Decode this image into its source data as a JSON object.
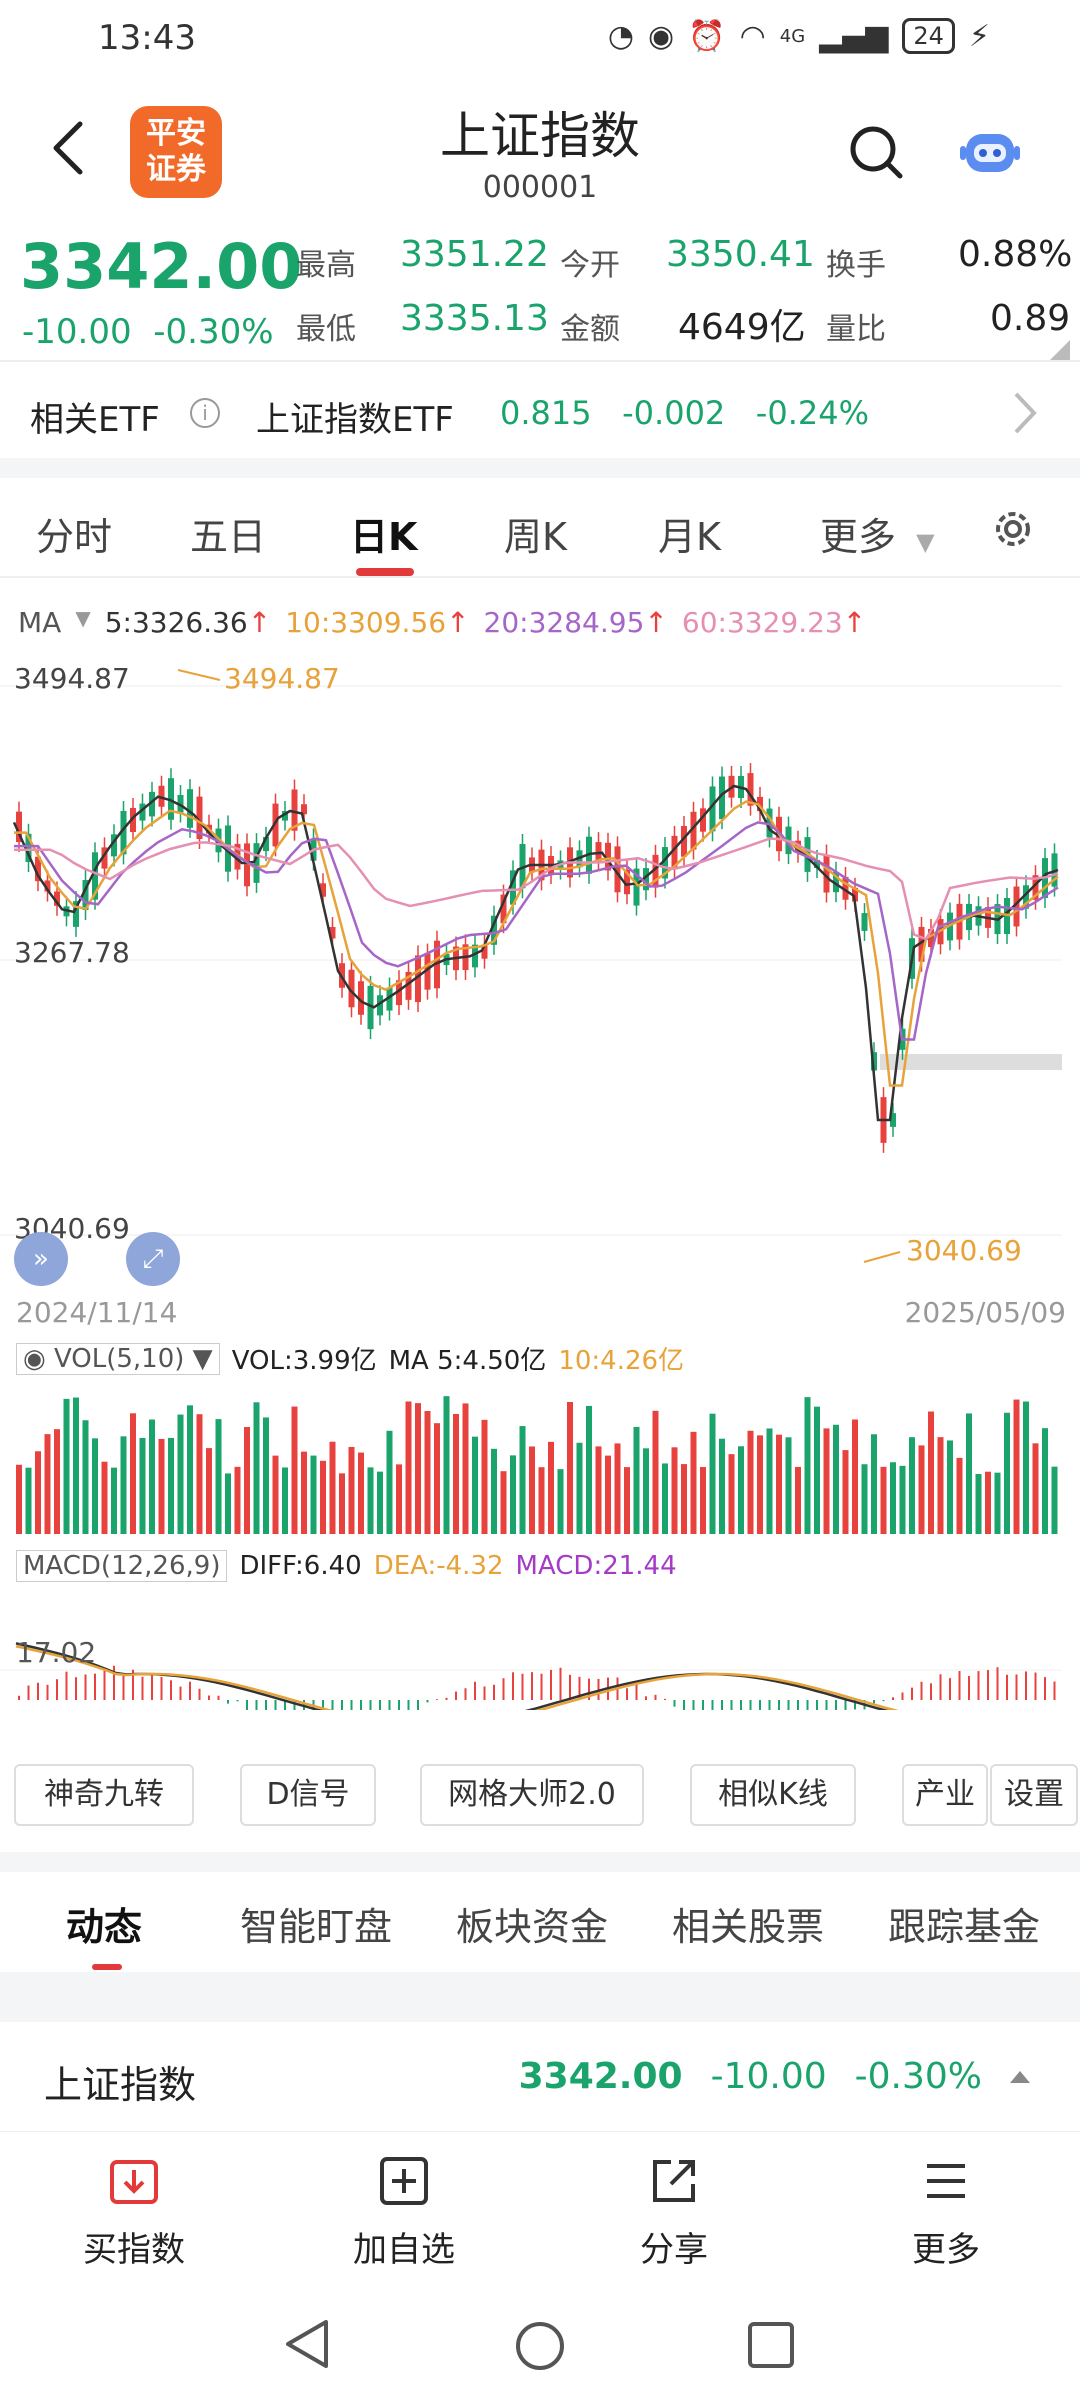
{
  "status": {
    "time": "13:43",
    "network": "4G",
    "battery": "24"
  },
  "header": {
    "title": "上证指数",
    "code": "000001",
    "logo_text_1": "平安",
    "logo_text_2": "证券"
  },
  "quote": {
    "price": "3342.00",
    "change": "-10.00",
    "change_pct": "-0.30%",
    "high_label": "最高",
    "high": "3351.22",
    "open_label": "今开",
    "open": "3350.41",
    "turnover_label": "换手",
    "turnover": "0.88%",
    "low_label": "最低",
    "low": "3335.13",
    "amount_label": "金额",
    "amount": "4649亿",
    "volratio_label": "量比",
    "volratio": "0.89",
    "color_down": "#1aa36b"
  },
  "etf": {
    "label": "相关ETF",
    "name": "上证指数ETF",
    "price": "0.815",
    "change": "-0.002",
    "change_pct": "-0.24%"
  },
  "tabs": [
    {
      "label": "分时"
    },
    {
      "label": "五日"
    },
    {
      "label": "日K"
    },
    {
      "label": "周K"
    },
    {
      "label": "月K"
    },
    {
      "label": "更多"
    }
  ],
  "chart": {
    "ma_legend": {
      "ma": "MA",
      "ma5": "5:3326.36",
      "ma10": "10:3309.56",
      "ma20": "20:3284.95",
      "ma60": "60:3329.23",
      "up_arrow": "↑"
    },
    "high_label": "3494.87",
    "mid_label": "3267.78",
    "low_label": "3040.69",
    "peak_note": "3494.87",
    "trough_note": "3040.69",
    "start_date": "2024/11/14",
    "end_date": "2025/05/09",
    "vol_legend": {
      "name": "VOL(5,10)",
      "vol": "VOL:3.99亿",
      "ma5": "MA 5:4.50亿",
      "ma10": "10:4.26亿"
    },
    "macd_legend": {
      "name": "MACD(12,26,9)",
      "diff": "DIFF:6.40",
      "dea": "DEA:-4.32",
      "macd": "MACD:21.44"
    },
    "macd_axis": "17.02",
    "colors": {
      "up": "#e8423f",
      "down": "#1aa36b",
      "ma5": "#333333",
      "ma10": "#e8a23a",
      "ma20": "#a566c8",
      "ma60": "#e58fb3"
    }
  },
  "tools": [
    {
      "label": "神奇九转"
    },
    {
      "label": "D信号"
    },
    {
      "label": "网格大师2.0"
    },
    {
      "label": "相似K线"
    },
    {
      "label": "产业"
    },
    {
      "label": "设置"
    }
  ],
  "sub_tabs": [
    {
      "label": "动态"
    },
    {
      "label": "智能盯盘"
    },
    {
      "label": "板块资金"
    },
    {
      "label": "相关股票"
    },
    {
      "label": "跟踪基金"
    }
  ],
  "index_row": {
    "name": "上证指数",
    "price": "3342.00",
    "change": "-10.00",
    "change_pct": "-0.30%"
  },
  "actions": [
    {
      "label": "买指数",
      "icon": "download-icon"
    },
    {
      "label": "加自选",
      "icon": "plus-box-icon"
    },
    {
      "label": "分享",
      "icon": "share-icon"
    },
    {
      "label": "更多",
      "icon": "menu-icon"
    }
  ]
}
